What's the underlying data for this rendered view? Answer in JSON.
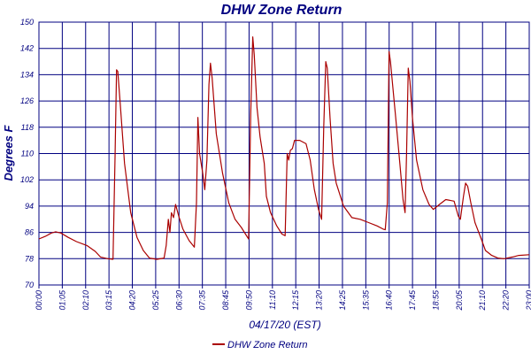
{
  "chart_data": {
    "type": "line",
    "title": "DHW Zone Return",
    "xlabel": "04/17/20 (EST)",
    "ylabel": "Degrees F",
    "x_unit": "hours",
    "xlim": [
      0,
      23.5
    ],
    "ylim": [
      70,
      150
    ],
    "y_ticks": [
      70,
      78,
      86,
      94,
      102,
      110,
      118,
      126,
      134,
      142,
      150
    ],
    "x_tick_labels": [
      "00:00",
      "01:05",
      "02:10",
      "03:15",
      "04:20",
      "05:25",
      "06:30",
      "07:35",
      "08:45",
      "09:50",
      "11:10",
      "12:15",
      "13:20",
      "14:25",
      "15:35",
      "16:40",
      "17:45",
      "18:55",
      "20:05",
      "21:10",
      "22:20",
      "23:00"
    ],
    "grid": true,
    "legend_position": "bottom-center",
    "line_color": "#aa0000",
    "series": [
      {
        "name": "DHW Zone Return",
        "points": [
          [
            0.0,
            84.0
          ],
          [
            0.3,
            84.8
          ],
          [
            0.6,
            85.8
          ],
          [
            0.8,
            86.2
          ],
          [
            1.05,
            85.8
          ],
          [
            1.4,
            84.5
          ],
          [
            1.8,
            83.2
          ],
          [
            2.3,
            82.0
          ],
          [
            2.7,
            80.2
          ],
          [
            2.95,
            78.5
          ],
          [
            3.3,
            78.0
          ],
          [
            3.55,
            77.8
          ],
          [
            3.65,
            109.0
          ],
          [
            3.72,
            135.5
          ],
          [
            3.78,
            135.0
          ],
          [
            3.9,
            125.0
          ],
          [
            4.1,
            107.0
          ],
          [
            4.4,
            92.0
          ],
          [
            4.7,
            84.5
          ],
          [
            5.0,
            80.5
          ],
          [
            5.3,
            78.2
          ],
          [
            5.65,
            77.8
          ],
          [
            6.0,
            78.2
          ],
          [
            6.1,
            82.0
          ],
          [
            6.2,
            90.0
          ],
          [
            6.28,
            86.0
          ],
          [
            6.35,
            92.0
          ],
          [
            6.45,
            90.5
          ],
          [
            6.55,
            94.5
          ],
          [
            6.7,
            91.0
          ],
          [
            6.9,
            87.0
          ],
          [
            7.2,
            83.5
          ],
          [
            7.45,
            81.5
          ],
          [
            7.55,
            95.0
          ],
          [
            7.62,
            121.0
          ],
          [
            7.7,
            110.0
          ],
          [
            7.85,
            104.0
          ],
          [
            7.95,
            99.0
          ],
          [
            8.05,
            108.0
          ],
          [
            8.15,
            131.0
          ],
          [
            8.22,
            137.5
          ],
          [
            8.3,
            133.0
          ],
          [
            8.5,
            116.0
          ],
          [
            8.8,
            104.0
          ],
          [
            9.1,
            95.0
          ],
          [
            9.4,
            90.0
          ],
          [
            9.7,
            87.5
          ],
          [
            9.9,
            85.5
          ],
          [
            10.0,
            84.5
          ],
          [
            10.05,
            84.0
          ],
          [
            10.15,
            122.0
          ],
          [
            10.25,
            145.5
          ],
          [
            10.32,
            140.0
          ],
          [
            10.45,
            124.0
          ],
          [
            10.6,
            115.0
          ],
          [
            10.8,
            107.0
          ],
          [
            10.9,
            97.0
          ],
          [
            11.1,
            92.0
          ],
          [
            11.4,
            88.0
          ],
          [
            11.65,
            85.5
          ],
          [
            11.8,
            85.0
          ],
          [
            11.9,
            110.0
          ],
          [
            11.97,
            108.0
          ],
          [
            12.05,
            111.0
          ],
          [
            12.15,
            111.5
          ],
          [
            12.25,
            114.0
          ],
          [
            12.5,
            114.0
          ],
          [
            12.8,
            113.0
          ],
          [
            13.0,
            108.0
          ],
          [
            13.2,
            99.0
          ],
          [
            13.4,
            93.0
          ],
          [
            13.55,
            90.0
          ],
          [
            13.65,
            118.0
          ],
          [
            13.75,
            138.0
          ],
          [
            13.82,
            136.0
          ],
          [
            13.95,
            121.0
          ],
          [
            14.1,
            107.0
          ],
          [
            14.25,
            101.0
          ],
          [
            14.6,
            94.0
          ],
          [
            15.0,
            90.5
          ],
          [
            15.4,
            90.0
          ],
          [
            15.8,
            89.0
          ],
          [
            16.2,
            88.0
          ],
          [
            16.5,
            87.0
          ],
          [
            16.6,
            86.8
          ],
          [
            16.7,
            95.0
          ],
          [
            16.78,
            141.0
          ],
          [
            16.85,
            138.0
          ],
          [
            16.95,
            131.0
          ],
          [
            17.1,
            121.0
          ],
          [
            17.3,
            107.0
          ],
          [
            17.45,
            96.0
          ],
          [
            17.55,
            92.0
          ],
          [
            17.62,
            110.0
          ],
          [
            17.7,
            136.0
          ],
          [
            17.78,
            132.0
          ],
          [
            17.9,
            121.0
          ],
          [
            18.1,
            108.0
          ],
          [
            18.4,
            99.0
          ],
          [
            18.7,
            94.5
          ],
          [
            18.9,
            93.0
          ],
          [
            19.2,
            94.5
          ],
          [
            19.5,
            96.0
          ],
          [
            19.9,
            95.5
          ],
          [
            20.1,
            91.0
          ],
          [
            20.2,
            90.0
          ],
          [
            20.35,
            97.0
          ],
          [
            20.45,
            101.0
          ],
          [
            20.55,
            100.0
          ],
          [
            20.7,
            95.0
          ],
          [
            20.9,
            89.0
          ],
          [
            21.2,
            84.0
          ],
          [
            21.4,
            80.5
          ],
          [
            21.7,
            79.0
          ],
          [
            22.0,
            78.2
          ],
          [
            22.3,
            78.0
          ],
          [
            22.7,
            78.5
          ],
          [
            23.0,
            79.0
          ],
          [
            23.5,
            79.2
          ]
        ]
      }
    ]
  }
}
